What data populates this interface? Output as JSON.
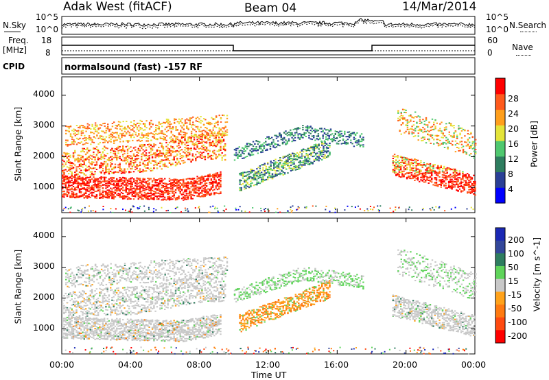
{
  "header": {
    "radar": "Adak West (fitACF)",
    "beam": "Beam 04",
    "date": "14/Mar/2014"
  },
  "strip_labels": {
    "nsky": "N.Sky",
    "nsearch": "N.Search",
    "nsky_top": "10^5",
    "nsky_bottom": "10^0",
    "nsearch_top": "10^5",
    "nsearch_bottom": "10^0",
    "freq_line1": "Freq.",
    "freq_line2": "[MHz]",
    "freq_top": "18",
    "freq_bottom": "8",
    "nave": "Nave",
    "nave_top": "60",
    "nave_bottom": "0",
    "cpid": "CPID",
    "program": "normalsound (fast) -157 RF"
  },
  "chart_data": [
    {
      "type": "heatmap",
      "title": "",
      "xlabel": "Time UT",
      "ylabel": "Slant Range [km]",
      "x_ticks": [
        "00:00",
        "04:00",
        "08:00",
        "12:00",
        "16:00",
        "20:00",
        "00:00"
      ],
      "y_ticks": [
        "1000",
        "2000",
        "3000",
        "4000"
      ],
      "xlim": [
        0,
        24
      ],
      "ylim": [
        180,
        4600
      ],
      "colorbar_label": "Power [dB]",
      "colorbar_ticks": [
        "4",
        "8",
        "12",
        "16",
        "20",
        "24",
        "28"
      ],
      "colorbar_colors": [
        "#0000ff",
        "#2a3f96",
        "#2e7d5f",
        "#4fc86f",
        "#e4e43a",
        "#ff9f1c",
        "#ff5a1c",
        "#ff0000"
      ],
      "grid": false
    },
    {
      "type": "heatmap",
      "title": "",
      "xlabel": "Time UT",
      "ylabel": "Slant Range [km]",
      "x_ticks": [
        "00:00",
        "04:00",
        "08:00",
        "12:00",
        "16:00",
        "20:00",
        "00:00"
      ],
      "y_ticks": [
        "1000",
        "2000",
        "3000",
        "4000"
      ],
      "xlim": [
        0,
        24
      ],
      "ylim": [
        180,
        4600
      ],
      "colorbar_label": "Velocity [m s^-1]",
      "colorbar_ticks": [
        "200",
        "100",
        "50",
        "15",
        "-15",
        "-50",
        "-100",
        "-200"
      ],
      "colorbar_colors": [
        "#1a28b4",
        "#33479a",
        "#2e7d5f",
        "#5fd45a",
        "#c8c8c8",
        "#ffa21a",
        "#ff7a10",
        "#ff4a10",
        "#ff0000"
      ],
      "grid": false
    }
  ],
  "x_axis_title": "Time UT"
}
